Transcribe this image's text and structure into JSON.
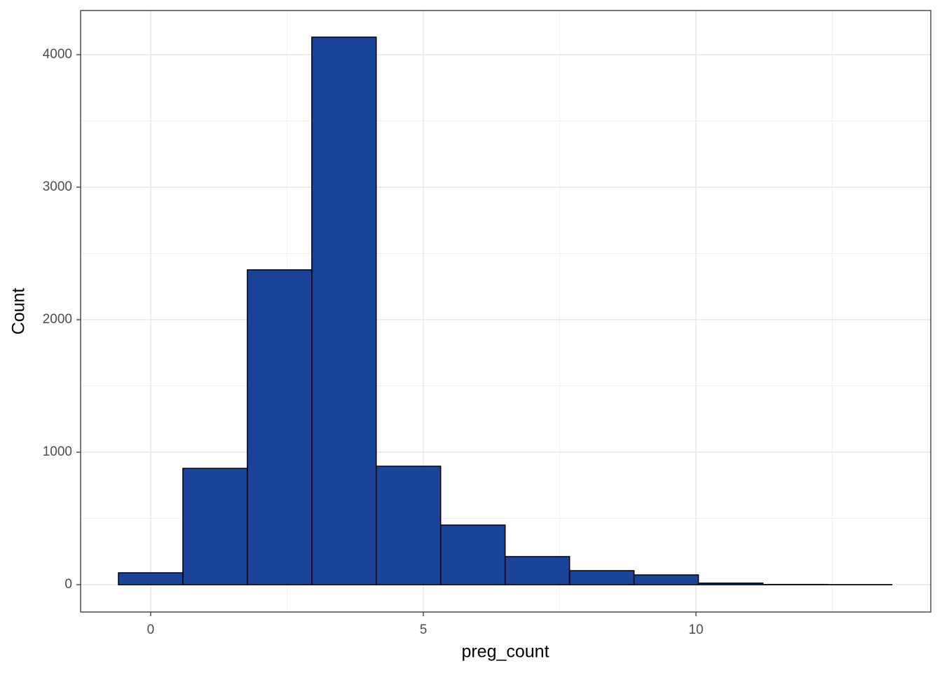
{
  "chart_data": {
    "type": "histogram",
    "x_label": "preg_count",
    "y_label": "Count",
    "bins": [
      -0.591,
      0.591,
      1.773,
      2.955,
      4.136,
      5.318,
      6.5,
      7.682,
      8.864,
      10.045,
      11.227,
      12.409,
      13.591
    ],
    "values": [
      90,
      878,
      2376,
      4132,
      894,
      450,
      212,
      106,
      74,
      12,
      2,
      1
    ],
    "color": "#1a4499",
    "edge_color": "#000000",
    "xlim": [
      -1.285,
      14.306
    ],
    "ylim": [
      -206,
      4333
    ],
    "xticks": [
      0,
      5,
      10
    ],
    "yticks": [
      0,
      1000,
      2000,
      3000,
      4000
    ],
    "minor_xticks": [
      2.5,
      7.5,
      12.5
    ],
    "minor_yticks": [
      500,
      1500,
      2500,
      3500
    ],
    "grid": true
  }
}
